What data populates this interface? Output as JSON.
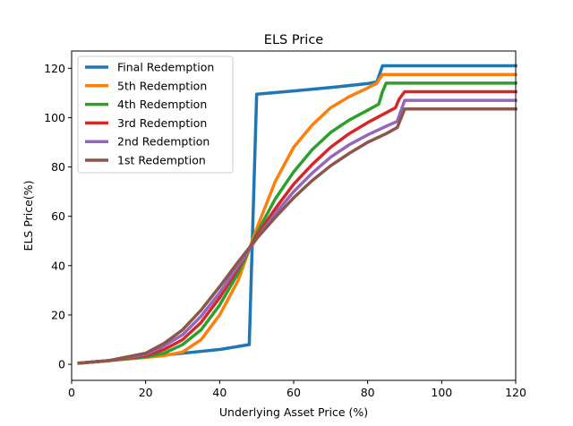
{
  "chart_data": {
    "type": "line",
    "title": "ELS Price",
    "xlabel": "Underlying Asset Price (%)",
    "ylabel": "ELS Price(%)",
    "xlim": [
      0,
      120
    ],
    "ylim": [
      -6.5,
      127
    ],
    "xticks": [
      0,
      20,
      40,
      60,
      80,
      100,
      120
    ],
    "yticks": [
      0,
      20,
      40,
      60,
      80,
      100,
      120
    ],
    "grid": false,
    "legend_position": "top-left",
    "series": [
      {
        "name": "Final Redemption",
        "color": "#1f77b4",
        "points": [
          [
            2,
            0.5
          ],
          [
            10,
            1.5
          ],
          [
            20,
            3
          ],
          [
            30,
            4.5
          ],
          [
            40,
            6
          ],
          [
            48,
            8
          ],
          [
            50,
            109.5
          ],
          [
            60,
            110.8
          ],
          [
            70,
            112.2
          ],
          [
            80,
            113.8
          ],
          [
            82.5,
            114.5
          ],
          [
            84,
            121
          ],
          [
            120,
            121
          ]
        ]
      },
      {
        "name": "5th Redemption",
        "color": "#ff7f0e",
        "points": [
          [
            2,
            0.5
          ],
          [
            10,
            1.5
          ],
          [
            20,
            2.8
          ],
          [
            25,
            3.5
          ],
          [
            30,
            5
          ],
          [
            35,
            10
          ],
          [
            40,
            20
          ],
          [
            45,
            34
          ],
          [
            50,
            55
          ],
          [
            55,
            74
          ],
          [
            60,
            88
          ],
          [
            65,
            97
          ],
          [
            70,
            104
          ],
          [
            75,
            108.5
          ],
          [
            80,
            112
          ],
          [
            82.5,
            114
          ],
          [
            84,
            117.5
          ],
          [
            120,
            117.5
          ]
        ]
      },
      {
        "name": "4th Redemption",
        "color": "#2ca02c",
        "points": [
          [
            2,
            0.5
          ],
          [
            10,
            1.5
          ],
          [
            20,
            3
          ],
          [
            25,
            4.5
          ],
          [
            30,
            8
          ],
          [
            35,
            14
          ],
          [
            40,
            24
          ],
          [
            45,
            37
          ],
          [
            50,
            53
          ],
          [
            55,
            67
          ],
          [
            60,
            78
          ],
          [
            65,
            87
          ],
          [
            70,
            94
          ],
          [
            75,
            99
          ],
          [
            80,
            103
          ],
          [
            83,
            105.5
          ],
          [
            84,
            110.5
          ],
          [
            85,
            114
          ],
          [
            120,
            114
          ]
        ]
      },
      {
        "name": "3rd Redemption",
        "color": "#d62728",
        "points": [
          [
            2,
            0.5
          ],
          [
            10,
            1.5
          ],
          [
            20,
            3.5
          ],
          [
            25,
            6
          ],
          [
            30,
            10
          ],
          [
            35,
            17
          ],
          [
            40,
            27
          ],
          [
            45,
            39
          ],
          [
            50,
            52
          ],
          [
            55,
            63
          ],
          [
            60,
            73
          ],
          [
            65,
            81
          ],
          [
            70,
            88
          ],
          [
            75,
            93.5
          ],
          [
            80,
            98
          ],
          [
            85,
            102
          ],
          [
            87.5,
            104
          ],
          [
            88.5,
            107.5
          ],
          [
            90,
            110.5
          ],
          [
            120,
            110.5
          ]
        ]
      },
      {
        "name": "2nd Redemption",
        "color": "#9467bd",
        "points": [
          [
            2,
            0.5
          ],
          [
            10,
            1.5
          ],
          [
            20,
            4
          ],
          [
            25,
            7.5
          ],
          [
            30,
            12
          ],
          [
            35,
            19.5
          ],
          [
            40,
            29
          ],
          [
            45,
            40
          ],
          [
            50,
            51
          ],
          [
            55,
            61
          ],
          [
            60,
            70
          ],
          [
            65,
            77.5
          ],
          [
            70,
            84
          ],
          [
            75,
            89
          ],
          [
            80,
            93
          ],
          [
            85,
            96.5
          ],
          [
            88,
            98.5
          ],
          [
            90,
            107
          ],
          [
            120,
            107
          ]
        ]
      },
      {
        "name": "1st Redemption",
        "color": "#8c564b",
        "points": [
          [
            2,
            0.5
          ],
          [
            10,
            1.5
          ],
          [
            20,
            4.5
          ],
          [
            25,
            8.5
          ],
          [
            30,
            14
          ],
          [
            35,
            22
          ],
          [
            40,
            31.5
          ],
          [
            45,
            41.5
          ],
          [
            50,
            51
          ],
          [
            55,
            59.5
          ],
          [
            60,
            67.5
          ],
          [
            65,
            74.5
          ],
          [
            70,
            80.5
          ],
          [
            75,
            85.5
          ],
          [
            80,
            90
          ],
          [
            85,
            93.5
          ],
          [
            88,
            96
          ],
          [
            90,
            103.5
          ],
          [
            120,
            103.5
          ]
        ]
      }
    ]
  }
}
